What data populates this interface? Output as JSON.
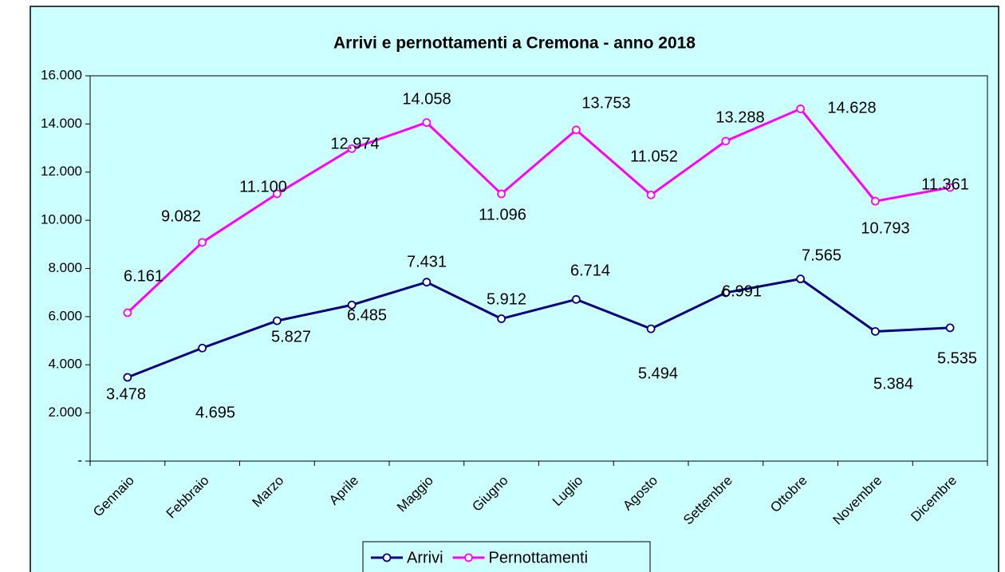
{
  "chart_data": {
    "type": "line",
    "title": "Arrivi e pernottamenti a Cremona - anno 2018",
    "categories": [
      "Gennaio",
      "Febbraio",
      "Marzo",
      "Aprile",
      "Maggio",
      "Giugno",
      "Luglio",
      "Agosto",
      "Settembre",
      "Ottobre",
      "Novembre",
      "Dicembre"
    ],
    "series": [
      {
        "name": "Arrivi",
        "color": "#000080",
        "values": [
          3478,
          4695,
          5827,
          6485,
          7431,
          5912,
          6714,
          5494,
          6991,
          7565,
          5384,
          5535
        ],
        "value_labels": [
          "3.478",
          "4.695",
          "5.827",
          "6.485",
          "7.431",
          "5.912",
          "6.714",
          "5.494",
          "6.991",
          "7.565",
          "5.384",
          "5.535"
        ]
      },
      {
        "name": "Pernottamenti",
        "color": "#ff00ff",
        "values": [
          6161,
          9082,
          11100,
          12974,
          14058,
          11096,
          13753,
          11052,
          13288,
          14628,
          10793,
          11361
        ],
        "value_labels": [
          "6.161",
          "9.082",
          "11.100",
          "12.974",
          "14.058",
          "11.096",
          "13.753",
          "11.052",
          "13.288",
          "14.628",
          "10.793",
          "11.361"
        ]
      }
    ],
    "ylim": [
      0,
      16000
    ],
    "yticks": [
      {
        "value": 0,
        "label": "-"
      },
      {
        "value": 2000,
        "label": "2.000"
      },
      {
        "value": 4000,
        "label": "4.000"
      },
      {
        "value": 6000,
        "label": "6.000"
      },
      {
        "value": 8000,
        "label": "8.000"
      },
      {
        "value": 10000,
        "label": "10.000"
      },
      {
        "value": 12000,
        "label": "12.000"
      },
      {
        "value": 14000,
        "label": "14.000"
      },
      {
        "value": 16000,
        "label": "16.000"
      }
    ],
    "legend": "bottom"
  }
}
